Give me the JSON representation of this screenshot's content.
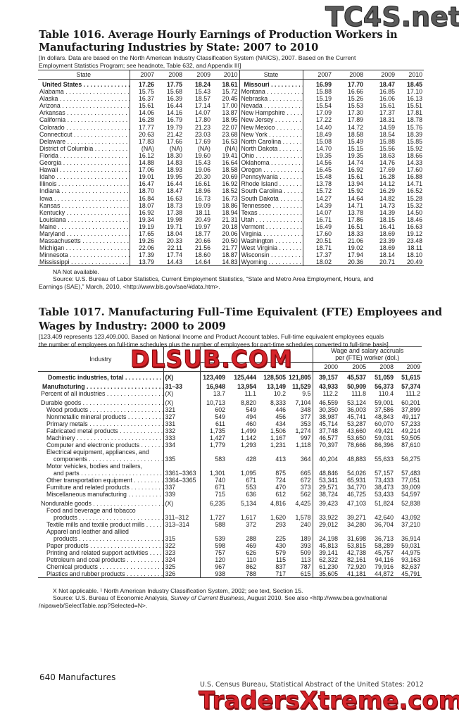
{
  "watermarks": {
    "top_right": "TC4S.net",
    "middle": "DLSUB.COM",
    "bottom": "TradersXtreme.com"
  },
  "table1016": {
    "title_line1": "Table 1016. Average Hourly Earnings of Production Workers in",
    "title_line2": "Manufacturing Industries by State: 2007 to 2010",
    "headnote_line1": "[In dollars. Data are based on the North American Industry Classification System (NAICS), 2007. Based on the Current",
    "headnote_line2": "Employment Statistics Program; see headnote, Table 632, and Appendix III]",
    "columns": [
      "State",
      "2007",
      "2008",
      "2009",
      "2010",
      "State",
      "2007",
      "2008",
      "2009",
      "2010"
    ],
    "rows_left": [
      [
        "United States",
        "17.26",
        "17.75",
        "18.24",
        "18.61"
      ],
      [
        "Alabama",
        "15.75",
        "15.68",
        "15.43",
        "15.72"
      ],
      [
        "Alaska",
        "16.37",
        "16.39",
        "18.57",
        "20.45"
      ],
      [
        "Arizona",
        "15.61",
        "16.44",
        "17.14",
        "17.00"
      ],
      [
        "Arkansas",
        "14.06",
        "14.16",
        "14.07",
        "13.87"
      ],
      [
        "California",
        "16.28",
        "16.79",
        "17.80",
        "18.95"
      ],
      [
        "Colorado",
        "17.77",
        "19.79",
        "21.23",
        "22.07"
      ],
      [
        "Connecticut",
        "20.63",
        "21.42",
        "23.03",
        "23.68"
      ],
      [
        "Delaware",
        "17.83",
        "17.66",
        "17.69",
        "16.53"
      ],
      [
        "District of Columbia",
        "(NA)",
        "(NA)",
        "(NA)",
        "(NA)"
      ],
      [
        "Florida",
        "16.12",
        "18.30",
        "19.60",
        "19.41"
      ],
      [
        "Georgia",
        "14.88",
        "14.83",
        "15.43",
        "16.64"
      ],
      [
        "Hawaii",
        "17.06",
        "18.93",
        "19.06",
        "18.58"
      ],
      [
        "Idaho",
        "19.01",
        "19.95",
        "20.30",
        "20.69"
      ],
      [
        "Illinois",
        "16.47",
        "16.44",
        "16.61",
        "16.92"
      ],
      [
        "Indiana",
        "18.70",
        "18.47",
        "18.96",
        "18.52"
      ],
      [
        "Iowa",
        "16.84",
        "16.63",
        "16.73",
        "16.73"
      ],
      [
        "Kansas",
        "18.07",
        "18.73",
        "19.09",
        "18.86"
      ],
      [
        "Kentucky",
        "16.92",
        "17.38",
        "18.11",
        "18.94"
      ],
      [
        "Louisiana",
        "19.34",
        "19.98",
        "20.49",
        "21.31"
      ],
      [
        "Maine",
        "19.19",
        "19.71",
        "19.97",
        "20.18"
      ],
      [
        "Maryland",
        "17.65",
        "18.04",
        "18.77",
        "20.06"
      ],
      [
        "Massachusetts",
        "19.26",
        "20.33",
        "20.66",
        "20.50"
      ],
      [
        "Michigan",
        "22.06",
        "22.11",
        "21.56",
        "21.77"
      ],
      [
        "Minnesota",
        "17.39",
        "17.74",
        "18.60",
        "18.87"
      ],
      [
        "Mississippi",
        "13.79",
        "14.43",
        "14.64",
        "14.83"
      ]
    ],
    "rows_right": [
      [
        "Missouri",
        "16.99",
        "17.70",
        "18.47",
        "18.45"
      ],
      [
        "Montana",
        "15.88",
        "16.66",
        "16.85",
        "17.10"
      ],
      [
        "Nebraska",
        "15.19",
        "15.26",
        "16.06",
        "16.13"
      ],
      [
        "Nevada",
        "15.54",
        "15.53",
        "15.61",
        "15.51"
      ],
      [
        "New Hampshire",
        "17.09",
        "17.30",
        "17.37",
        "17.81"
      ],
      [
        "New Jersey",
        "17.22",
        "17.89",
        "18.31",
        "18.78"
      ],
      [
        "New Mexico",
        "14.40",
        "14.72",
        "14.59",
        "15.76"
      ],
      [
        "New York",
        "18.49",
        "18.58",
        "18.54",
        "18.39"
      ],
      [
        "North Carolina",
        "15.08",
        "15.49",
        "15.88",
        "15.85"
      ],
      [
        "North Dakota",
        "14.70",
        "15.15",
        "15.56",
        "15.92"
      ],
      [
        "Ohio",
        "19.35",
        "19.35",
        "18.63",
        "18.66"
      ],
      [
        "Oklahoma",
        "14.56",
        "14.74",
        "14.76",
        "14.33"
      ],
      [
        "Oregon",
        "16.45",
        "16.92",
        "17.69",
        "17.60"
      ],
      [
        "Pennsylvania",
        "15.48",
        "15.61",
        "16.28",
        "16.88"
      ],
      [
        "Rhode Island",
        "13.78",
        "13.94",
        "14.12",
        "14.71"
      ],
      [
        "South Carolina",
        "15.72",
        "15.92",
        "16.29",
        "16.52"
      ],
      [
        "South Dakota",
        "14.27",
        "14.64",
        "14.82",
        "15.28"
      ],
      [
        "Tennessee",
        "14.39",
        "14.71",
        "14.73",
        "15.32"
      ],
      [
        "Texas",
        "14.07",
        "13.78",
        "14.39",
        "14.50"
      ],
      [
        "Utah",
        "16.71",
        "17.86",
        "18.15",
        "18.46"
      ],
      [
        "Vermont",
        "16.49",
        "16.51",
        "16.41",
        "16.63"
      ],
      [
        "Virginia",
        "17.60",
        "18.33",
        "18.69",
        "19.12"
      ],
      [
        "Washington",
        "20.51",
        "21.06",
        "23.39",
        "23.48"
      ],
      [
        "West Virginia",
        "18.71",
        "19.02",
        "18.69",
        "18.11"
      ],
      [
        "Wisconsin",
        "17.37",
        "17.94",
        "18.14",
        "18.10"
      ],
      [
        "Wyoming",
        "18.02",
        "20.36",
        "20.71",
        "20.49"
      ]
    ],
    "note_na": "NA Not available.",
    "source_line1": "Source: U.S. Bureau of Labor Statistics, Current Employment Statistics, “State and Metro Area Employment, Hours, and",
    "source_line2": "Earnings (SAE),” March, 2010, <http://www.bls.gov/sae/#data.htm>."
  },
  "table1017": {
    "title_line1": "Table 1017. Manufacturing Full–Time Equivalent (FTE) Employees and",
    "title_line2": "Wages by Industry: 2000 to 2009",
    "headnote_line1": "[123,409 represents 123,409,000. Based on National Income and Product Account tables. Full-time equivalent employees equals",
    "headnote_line2": "the number of employees on full-time schedules plus the number of employees for part-time schedules converted to full-time basis]",
    "header_industry": "Industry",
    "header_wage_line1": "Wage and salary accruals",
    "header_wage_line2": "per (FTE) worker (dol.)",
    "wage_years": [
      "2000",
      "2005",
      "2008",
      "2009"
    ],
    "rows": [
      {
        "label": "Domestic industries, total",
        "level": 0,
        "bold": true,
        "code": "(X)",
        "v": [
          "123,409",
          "125,444",
          "128,505",
          "121,805",
          "39,157",
          "45,537",
          "51,059",
          "51,615"
        ]
      },
      {
        "label": "Manufacturing",
        "level": 0,
        "bold": true,
        "gap": true,
        "code": "31–33",
        "v": [
          "16,948",
          "13,954",
          "13,149",
          "11,529",
          "43,933",
          "50,909",
          "56,373",
          "57,374"
        ]
      },
      {
        "label": "Percent of all industries",
        "level": 1,
        "code": "(X)",
        "v": [
          "13.7",
          "11.1",
          "10.2",
          "9.5",
          "112.2",
          "111.8",
          "110.4",
          "111.2"
        ]
      },
      {
        "label": "Durable goods",
        "level": 1,
        "gap": true,
        "code": "(X)",
        "v": [
          "10,713",
          "8,820",
          "8,333",
          "7,104",
          "46,559",
          "53,124",
          "59,001",
          "60,201"
        ]
      },
      {
        "label": "Wood products",
        "level": 2,
        "code": "321",
        "v": [
          "602",
          "549",
          "446",
          "348",
          "30,350",
          "36,003",
          "37,586",
          "37,899"
        ]
      },
      {
        "label": "Nonmetallic mineral products",
        "level": 2,
        "code": "327",
        "v": [
          "549",
          "494",
          "456",
          "377",
          "38,987",
          "45,741",
          "48,843",
          "49,117"
        ]
      },
      {
        "label": "Primary metals",
        "level": 2,
        "code": "331",
        "v": [
          "611",
          "460",
          "434",
          "353",
          "45,714",
          "53,287",
          "60,070",
          "57,233"
        ]
      },
      {
        "label": "Fabricated metal products",
        "level": 2,
        "code": "332",
        "v": [
          "1,735",
          "1,499",
          "1,506",
          "1,274",
          "37,748",
          "43,660",
          "49,421",
          "49,214"
        ]
      },
      {
        "label": "Machinery",
        "level": 2,
        "code": "333",
        "v": [
          "1,427",
          "1,142",
          "1,167",
          "997",
          "46,577",
          "53,650",
          "59,031",
          "59,505"
        ]
      },
      {
        "label": "Computer and electronic products",
        "level": 2,
        "code": "334",
        "v": [
          "1,779",
          "1,293",
          "1,231",
          "1,118",
          "70,397",
          "78,666",
          "86,396",
          "87,610"
        ]
      },
      {
        "label_first": "Electrical equipment, appliances, and",
        "label": "components",
        "level": 2,
        "code": "335",
        "v": [
          "583",
          "428",
          "413",
          "364",
          "40,204",
          "48,883",
          "55,633",
          "56,275"
        ]
      },
      {
        "label_first": "Motor vehicles, bodies and trailers,",
        "label": "and parts",
        "level": 2,
        "code": "3361–3363",
        "v": [
          "1,301",
          "1,095",
          "875",
          "665",
          "48,846",
          "54,026",
          "57,157",
          "57,483"
        ]
      },
      {
        "label": "Other transportation equipment",
        "level": 2,
        "code": "3364–3365",
        "v": [
          "740",
          "671",
          "724",
          "672",
          "53,341",
          "65,931",
          "73,433",
          "77,051"
        ]
      },
      {
        "label": "Furniture and related products",
        "level": 2,
        "code": "337",
        "v": [
          "671",
          "553",
          "470",
          "373",
          "29,571",
          "34,770",
          "38,473",
          "39,009"
        ]
      },
      {
        "label": "Miscellaneous manufacturing",
        "level": 2,
        "code": "339",
        "v": [
          "715",
          "636",
          "612",
          "562",
          "38,724",
          "46,725",
          "53,433",
          "54,597"
        ]
      },
      {
        "label": "Nondurable goods",
        "level": 1,
        "gap": true,
        "code": "(X)",
        "v": [
          "6,235",
          "5,134",
          "4,816",
          "4,425",
          "39,423",
          "47,103",
          "51,824",
          "52,838"
        ]
      },
      {
        "label_first": "Food and beverage and tobacco",
        "label": "products",
        "level": 2,
        "code": "311–312",
        "v": [
          "1,727",
          "1,617",
          "1,620",
          "1,578",
          "33,922",
          "39,271",
          "42,640",
          "43,092"
        ]
      },
      {
        "label": "Textile mills and textile product mills",
        "level": 2,
        "code": "313–314",
        "v": [
          "588",
          "372",
          "293",
          "240",
          "29,012",
          "34,280",
          "36,704",
          "37,210"
        ]
      },
      {
        "label_first": "Apparel and leather and allied",
        "label": "products",
        "level": 2,
        "code": "315",
        "v": [
          "539",
          "288",
          "225",
          "189",
          "24,198",
          "31,698",
          "36,713",
          "36,914"
        ]
      },
      {
        "label": "Paper products",
        "level": 2,
        "code": "322",
        "v": [
          "598",
          "469",
          "430",
          "393",
          "45,813",
          "53,815",
          "58,289",
          "59,031"
        ]
      },
      {
        "label": "Printing and related support activities",
        "level": 2,
        "code": "323",
        "v": [
          "757",
          "626",
          "579",
          "509",
          "39,141",
          "42,738",
          "45,757",
          "44,975"
        ]
      },
      {
        "label": "Petroleum and coal products",
        "level": 2,
        "code": "324",
        "v": [
          "120",
          "110",
          "115",
          "113",
          "62,322",
          "82,161",
          "94,116",
          "93,163"
        ]
      },
      {
        "label": "Chemical products",
        "level": 2,
        "code": "325",
        "v": [
          "967",
          "862",
          "837",
          "787",
          "61,230",
          "72,920",
          "79,916",
          "82,637"
        ]
      },
      {
        "label": "Plastics and rubber products",
        "level": 2,
        "code": "326",
        "v": [
          "938",
          "788",
          "717",
          "615",
          "35,605",
          "41,181",
          "44,872",
          "45,791"
        ]
      }
    ],
    "note_x": "X Not applicable. ¹ North American Industry Classification System, 2002; see text, Section 15.",
    "source_pre": "Source: U.S. Bureau of Economic Analysis, ",
    "source_italic": "Survey of Current Business",
    "source_post": ", August 2010. See also <http://www.bea.gov/national",
    "source_line2": "/nipaweb/SelectTable.asp?Selected=N>."
  },
  "footer": {
    "page_section": "640  Manufactures",
    "publication": "U.S. Census Bureau, Statistical Abstract of the United States: 2012"
  }
}
